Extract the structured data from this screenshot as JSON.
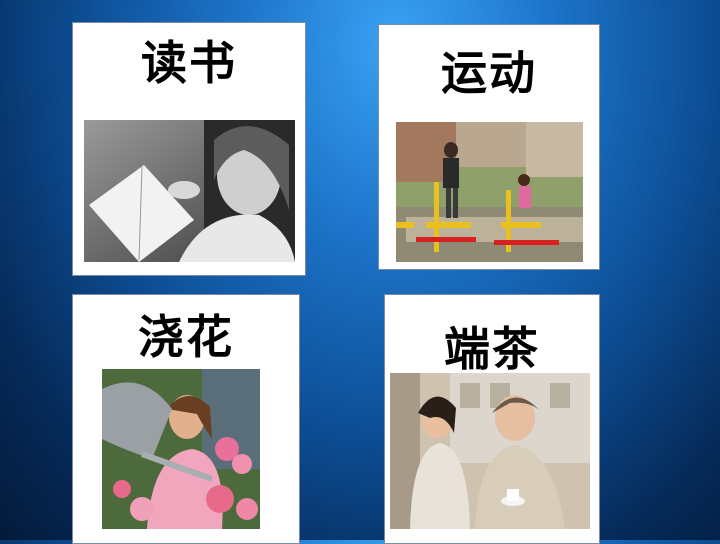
{
  "cards": [
    {
      "label": "读书",
      "photo": "girl-reading-book"
    },
    {
      "label": "运动",
      "photo": "child-and-adult-exercising-outdoors"
    },
    {
      "label": "浇花",
      "photo": "girl-watering-flowers"
    },
    {
      "label": "端茶",
      "photo": "girl-serving-tea-to-grandmother"
    }
  ]
}
